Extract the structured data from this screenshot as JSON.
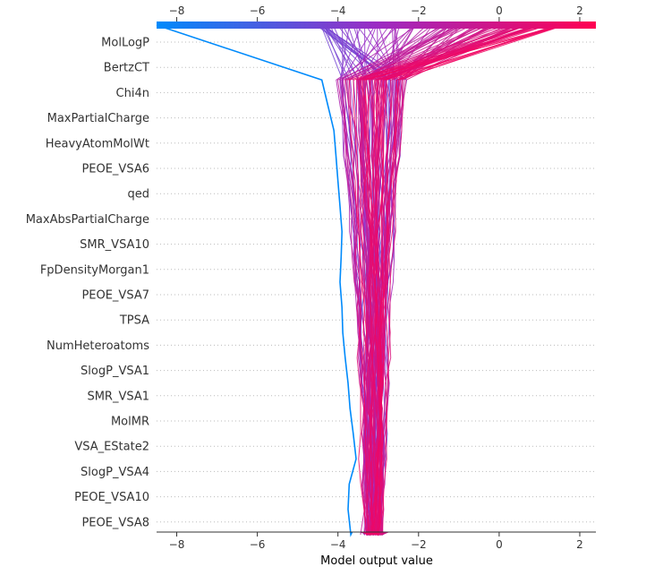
{
  "chart_data": {
    "type": "line",
    "chart_kind": "SHAP decision plot",
    "title": "",
    "xlabel": "Model output value",
    "ylabel": "",
    "xlim": [
      -8.5,
      2.4
    ],
    "x_ticks": [
      -8,
      -6,
      -4,
      -2,
      0,
      2
    ],
    "x_tick_labels": [
      "−8",
      "−6",
      "−4",
      "−2",
      "0",
      "2"
    ],
    "ticks_on_top_and_bottom": true,
    "base_value": -3.1,
    "features": [
      "MolLogP",
      "BertzCT",
      "Chi4n",
      "MaxPartialCharge",
      "HeavyAtomMolWt",
      "PEOE_VSA6",
      "qed",
      "MaxAbsPartialCharge",
      "SMR_VSA10",
      "FpDensityMorgan1",
      "PEOE_VSA7",
      "TPSA",
      "NumHeteroatoms",
      "SlogP_VSA1",
      "SMR_VSA1",
      "MolMR",
      "VSA_EState2",
      "SlogP_VSA4",
      "PEOE_VSA10",
      "PEOE_VSA8"
    ],
    "grid": "dotted horizontal line per feature",
    "colormap": {
      "low": "#008afb",
      "mid": "#9b2cc4",
      "high": "#ff0052"
    },
    "series_note": "approx. 110 sample paths, from base_value at bottom to final output at top, colored by final output value",
    "highlighted_series": {
      "name": "",
      "path_x": [
        -3.65,
        -3.68,
        -3.75,
        -3.72,
        -3.55,
        -3.62,
        -3.7,
        -3.75,
        -3.82,
        -3.88,
        -3.9,
        -3.95,
        -3.92,
        -3.9,
        -3.95,
        -4.0,
        -4.05,
        -4.1,
        -4.25,
        -4.4,
        -8.5
      ]
    },
    "output_range": [
      -8.5,
      2.4
    ]
  }
}
